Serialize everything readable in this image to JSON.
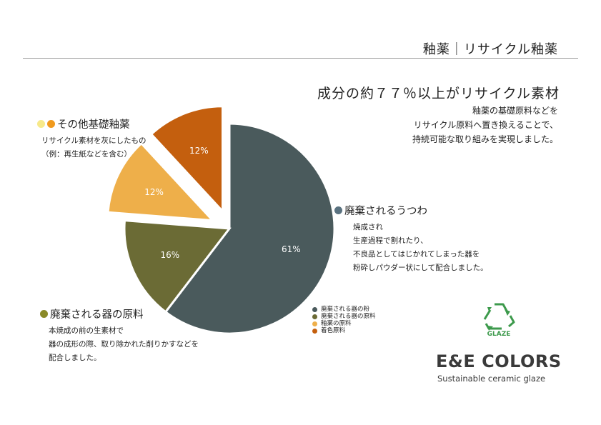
{
  "header": {
    "title": "釉薬｜リサイクル釉薬"
  },
  "headline": "成分の約７７％以上がリサイクル素材",
  "subtext": [
    "釉薬の基礎原料などを",
    "リサイクル原料へ置き換えることで、",
    "持続可能な取り組みを実現しました。"
  ],
  "colors": {
    "dark_slate": "#4a5a5c",
    "olive": "#6b6b35",
    "light_orange": "#eeaf4a",
    "dark_orange": "#c45f0e",
    "pale_yellow": "#f7e98a",
    "orange_dot": "#f09a1e"
  },
  "callouts": {
    "vessels": {
      "title": "廃棄されるうつわ",
      "body": [
        "焼成され",
        "生産過程で割れたり、",
        "不良品としてはじかれてしまった器を",
        "粉砕しパウダー状にして配合しました。"
      ]
    },
    "raw": {
      "title": "廃棄される器の原料",
      "body": [
        "本焼成の前の生素材で",
        "器の成形の際、取り除かれた削りかすなどを",
        "配合しました。"
      ]
    },
    "other": {
      "title": "その他基礎釉薬",
      "body": [
        "リサイクル素材を灰にしたもの",
        "（例：再生紙などを含む）"
      ]
    }
  },
  "chart_data": {
    "type": "pie",
    "title": "",
    "slices": [
      {
        "label": "廃棄される器の粉",
        "value": 61,
        "display": "61%",
        "color": "#4a5a5c",
        "exploded": false
      },
      {
        "label": "廃棄される器の原料",
        "value": 16,
        "display": "16%",
        "color": "#6b6b35",
        "exploded": false
      },
      {
        "label": "釉薬の原料",
        "value": 12,
        "display": "12%",
        "color": "#eeaf4a",
        "exploded": true
      },
      {
        "label": "着色原料",
        "value": 12,
        "display": "12%",
        "color": "#c45f0e",
        "exploded": true
      }
    ],
    "legend": {
      "position": "bottom-right",
      "entries": [
        "廃棄される器の粉",
        "廃棄される器の原料",
        "釉薬の原料",
        "着色原料"
      ]
    }
  },
  "logo": {
    "icon_label": "GLAZE",
    "name": "E&E COLORS",
    "tagline": "Sustainable ceramic glaze"
  }
}
